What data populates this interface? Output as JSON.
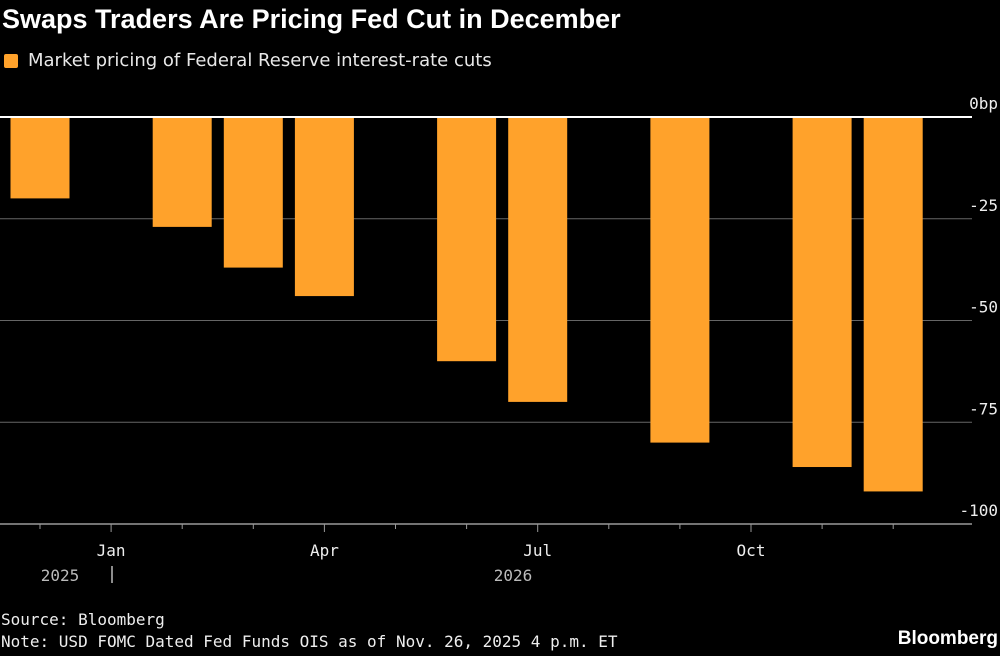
{
  "chart_data": {
    "type": "bar",
    "title": "Swaps Traders Are Pricing Fed Cut in December",
    "series": [
      {
        "name": "Market pricing of Federal Reserve interest-rate cuts",
        "color": "#ffa22b"
      }
    ],
    "categories": [
      "Dec 2025",
      "Feb 2026",
      "Mar 2026",
      "Apr 2026",
      "Jun 2026",
      "Jul 2026",
      "Sep 2026",
      "Nov 2026",
      "Dec 2026"
    ],
    "month_index": [
      0,
      2,
      3,
      4,
      6,
      7,
      9,
      11,
      12
    ],
    "values": [
      -20,
      -27,
      -37,
      -44,
      -60,
      -70,
      -80,
      -86,
      -92
    ],
    "ylim": [
      -100,
      0
    ],
    "y_ticks": [
      {
        "v": 0,
        "label": "0bp"
      },
      {
        "v": -25,
        "label": "-25"
      },
      {
        "v": -50,
        "label": "-50"
      },
      {
        "v": -75,
        "label": "-75"
      },
      {
        "v": -100,
        "label": "-100"
      }
    ],
    "x_ticks": [
      {
        "m": 1,
        "label": "Jan"
      },
      {
        "m": 4,
        "label": "Apr"
      },
      {
        "m": 7,
        "label": "Jul"
      },
      {
        "m": 10,
        "label": "Oct"
      }
    ],
    "year_labels": [
      "2025",
      "2026"
    ],
    "grid": true,
    "legend_position": "top-left"
  },
  "footer": {
    "source": "Source: Bloomberg",
    "note": "Note: USD FOMC Dated Fed Funds OIS as of Nov. 26, 2025 4 p.m. ET",
    "logo": "Bloomberg"
  }
}
